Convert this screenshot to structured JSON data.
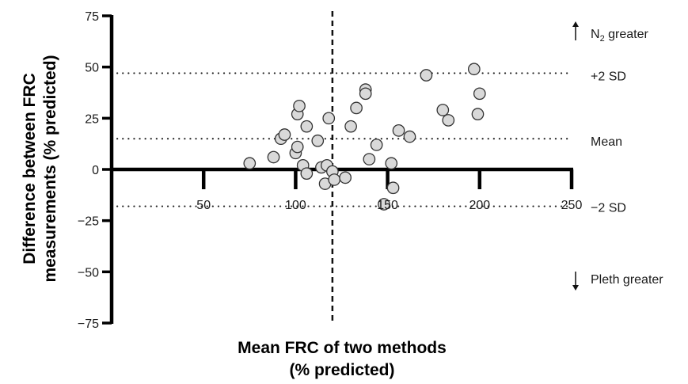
{
  "chart_data": {
    "type": "scatter",
    "xlabel": [
      "Mean FRC of two methods",
      "(% predicted)"
    ],
    "ylabel": [
      "Difference between FRC",
      "measurements (% predicted)"
    ],
    "xlim": [
      0,
      250
    ],
    "ylim": [
      -75,
      75
    ],
    "x_ticks": [
      50,
      100,
      150,
      200,
      250
    ],
    "y_ticks": [
      75,
      50,
      25,
      0,
      -25,
      -50,
      -75
    ],
    "x_tick_labels": [
      "50",
      "100",
      "150",
      "200",
      "250"
    ],
    "y_tick_labels": [
      "75",
      "50",
      "25",
      "0",
      "−25",
      "−50",
      "−75"
    ],
    "reference_lines": [
      {
        "label": "+2 SD",
        "y": 47,
        "style": "dotted"
      },
      {
        "label": "Mean",
        "y": 15,
        "style": "dotted"
      },
      {
        "label": "−2 SD",
        "y": -18,
        "style": "dotted"
      }
    ],
    "vertical_line": {
      "x": 120,
      "style": "dashed"
    },
    "annotations": {
      "top": {
        "arrow": "up",
        "text_prefix": "N",
        "subscript": "2",
        "text_suffix": " greater"
      },
      "bottom": {
        "arrow": "down",
        "text": "Pleth greater"
      }
    },
    "marker_fill": "#d9d9d9",
    "marker_edge": "#333333",
    "points": [
      {
        "x": 75,
        "y": 3
      },
      {
        "x": 88,
        "y": 6
      },
      {
        "x": 92,
        "y": 15
      },
      {
        "x": 94,
        "y": 17
      },
      {
        "x": 100,
        "y": 8
      },
      {
        "x": 101,
        "y": 11
      },
      {
        "x": 101,
        "y": 27
      },
      {
        "x": 102,
        "y": 31
      },
      {
        "x": 104,
        "y": 2
      },
      {
        "x": 106,
        "y": -2
      },
      {
        "x": 106,
        "y": 21
      },
      {
        "x": 112,
        "y": 14
      },
      {
        "x": 114,
        "y": 1
      },
      {
        "x": 116,
        "y": -7
      },
      {
        "x": 117,
        "y": 2
      },
      {
        "x": 118,
        "y": 25
      },
      {
        "x": 120,
        "y": -1
      },
      {
        "x": 121,
        "y": -5
      },
      {
        "x": 127,
        "y": -4
      },
      {
        "x": 130,
        "y": 21
      },
      {
        "x": 133,
        "y": 30
      },
      {
        "x": 138,
        "y": 39
      },
      {
        "x": 138,
        "y": 37
      },
      {
        "x": 140,
        "y": 5
      },
      {
        "x": 144,
        "y": 12
      },
      {
        "x": 148,
        "y": -17
      },
      {
        "x": 152,
        "y": 3
      },
      {
        "x": 153,
        "y": -9
      },
      {
        "x": 156,
        "y": 19
      },
      {
        "x": 162,
        "y": 16
      },
      {
        "x": 171,
        "y": 46
      },
      {
        "x": 180,
        "y": 29
      },
      {
        "x": 183,
        "y": 24
      },
      {
        "x": 197,
        "y": 49
      },
      {
        "x": 199,
        "y": 27
      },
      {
        "x": 200,
        "y": 37
      }
    ]
  }
}
